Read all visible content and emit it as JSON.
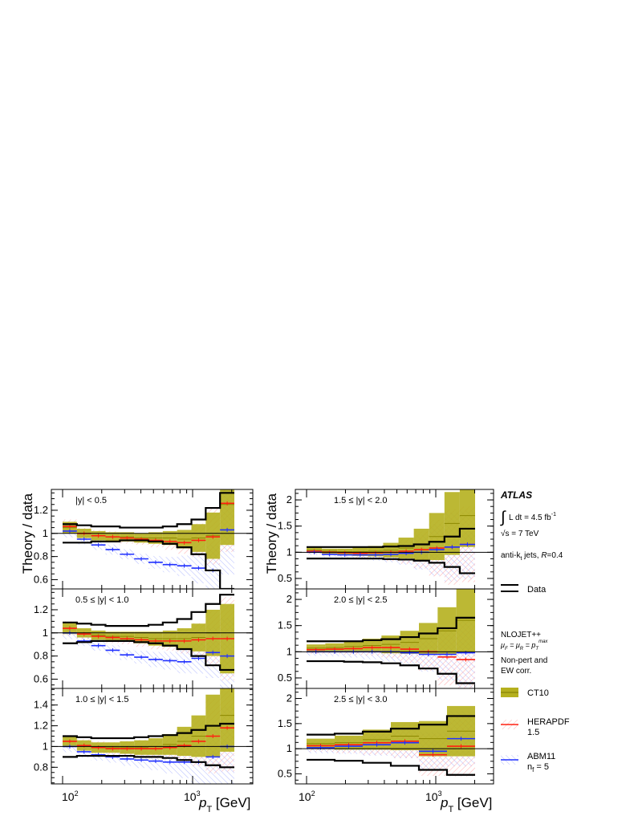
{
  "figure": {
    "ylabel": "Theory / data",
    "xlabel_var": "p",
    "xlabel_sub": "T",
    "xlabel_unit": " [GeV]",
    "xticks": [
      {
        "base": "10",
        "exp": "2"
      },
      {
        "base": "10",
        "exp": "3"
      }
    ]
  },
  "legend": {
    "experiment": "ATLAS",
    "lumi_int": "∫",
    "lumi_text": "L dt = 4.5 fb",
    "lumi_exp": "-1",
    "energy_root": "√",
    "energy_s": "s",
    "energy_text": " = 7 TeV",
    "jet_text": "anti-k",
    "jet_sub": "t",
    "jet_rest": " jets,  ",
    "jet_R": "R",
    "jet_R_val": "=0.4",
    "data_label": "Data",
    "theory_line1": "NLOJET++",
    "scale_text": "μ",
    "scale_sub1": "F",
    "scale_mid": " = μ",
    "scale_sub2": "R",
    "scale_end": " = p",
    "scale_sub3": "T",
    "scale_sup3": "max",
    "theory_line3": "Non-pert and",
    "theory_line4": " EW corr.",
    "entries": [
      {
        "name": "CT10",
        "name2": "",
        "color": "#b5b01e"
      },
      {
        "name": "HERAPDF",
        "name2": "1.5",
        "color": "#ff2010"
      },
      {
        "name": "ABM11",
        "name2": "n",
        "name2_sub": "f",
        "name2_rest": " = 5",
        "color": "#2030ff"
      }
    ]
  },
  "chart_data": [
    {
      "type": "line",
      "panel": "|y| < 0.5",
      "label": "|y| < 0.5",
      "column": "left",
      "row": 0,
      "ylim": [
        0.52,
        1.38
      ],
      "yticks": [
        "0.6",
        "0.8",
        "1",
        "1.2"
      ],
      "ytick_vals": [
        0.6,
        0.8,
        1.0,
        1.2
      ],
      "data_band_upper": [
        1.08,
        1.07,
        1.06,
        1.06,
        1.05,
        1.05,
        1.05,
        1.06,
        1.08,
        1.12,
        1.22,
        1.35
      ],
      "data_band_lower": [
        0.92,
        0.92,
        0.93,
        0.93,
        0.94,
        0.94,
        0.93,
        0.91,
        0.88,
        0.82,
        0.68,
        0.52
      ],
      "ct10": [
        1.05,
        1.0,
        0.98,
        0.97,
        0.97,
        0.96,
        0.96,
        0.96,
        0.95,
        0.96,
        0.98,
        1.25
      ],
      "ct10_unc": [
        0.05,
        0.04,
        0.04,
        0.04,
        0.04,
        0.04,
        0.05,
        0.06,
        0.08,
        0.12,
        0.2,
        0.35
      ],
      "herapdf": [
        1.06,
        1.0,
        0.98,
        0.97,
        0.96,
        0.95,
        0.94,
        0.93,
        0.92,
        0.94,
        0.97,
        1.26
      ],
      "abm11": [
        1.02,
        0.95,
        0.9,
        0.86,
        0.82,
        0.78,
        0.75,
        0.73,
        0.72,
        0.7,
        0.68,
        1.03
      ]
    },
    {
      "type": "line",
      "panel": "0.5 ≤ |y| < 1.0",
      "label": "0.5 ≤ |y| < 1.0",
      "column": "left",
      "row": 1,
      "ylim": [
        0.52,
        1.38
      ],
      "yticks": [
        "0.6",
        "0.8",
        "1",
        "1.2"
      ],
      "ytick_vals": [
        0.6,
        0.8,
        1.0,
        1.2
      ],
      "data_band_upper": [
        1.09,
        1.08,
        1.07,
        1.06,
        1.06,
        1.06,
        1.07,
        1.09,
        1.12,
        1.18,
        1.25,
        1.33
      ],
      "data_band_lower": [
        0.91,
        0.92,
        0.93,
        0.93,
        0.93,
        0.92,
        0.91,
        0.89,
        0.86,
        0.8,
        0.72,
        0.68
      ],
      "ct10": [
        1.04,
        1.0,
        0.98,
        0.97,
        0.97,
        0.96,
        0.95,
        0.95,
        0.95,
        0.96,
        1.0,
        0.95
      ],
      "ct10_unc": [
        0.05,
        0.04,
        0.04,
        0.04,
        0.04,
        0.05,
        0.06,
        0.07,
        0.09,
        0.12,
        0.2,
        0.3
      ],
      "herapdf": [
        1.04,
        0.99,
        0.97,
        0.96,
        0.95,
        0.94,
        0.93,
        0.93,
        0.93,
        0.94,
        0.95,
        0.95
      ],
      "abm11": [
        1.0,
        0.93,
        0.89,
        0.85,
        0.81,
        0.79,
        0.77,
        0.76,
        0.75,
        0.78,
        0.83,
        0.8
      ]
    },
    {
      "type": "line",
      "panel": "1.0 ≤ |y| < 1.5",
      "label": "1.0 ≤ |y| < 1.5",
      "column": "left",
      "row": 2,
      "ylim": [
        0.64,
        1.56
      ],
      "yticks": [
        "0.8",
        "1",
        "1.2",
        "1.4"
      ],
      "ytick_vals": [
        0.8,
        1.0,
        1.2,
        1.4
      ],
      "data_band_upper": [
        1.1,
        1.09,
        1.08,
        1.08,
        1.08,
        1.09,
        1.1,
        1.11,
        1.13,
        1.16,
        1.2,
        1.22
      ],
      "data_band_lower": [
        0.9,
        0.91,
        0.91,
        0.91,
        0.91,
        0.9,
        0.9,
        0.89,
        0.87,
        0.85,
        0.82,
        0.8
      ],
      "ct10": [
        1.05,
        1.01,
        0.99,
        0.99,
        0.99,
        0.99,
        1.0,
        1.02,
        1.05,
        1.1,
        1.2,
        1.3
      ],
      "ct10_unc": [
        0.05,
        0.05,
        0.05,
        0.05,
        0.06,
        0.07,
        0.08,
        0.1,
        0.14,
        0.2,
        0.3,
        0.35
      ],
      "herapdf": [
        1.05,
        1.01,
        0.99,
        0.98,
        0.98,
        0.98,
        0.98,
        0.99,
        1.01,
        1.05,
        1.1,
        1.18
      ],
      "abm11": [
        1.0,
        0.95,
        0.92,
        0.9,
        0.88,
        0.87,
        0.86,
        0.85,
        0.85,
        0.85,
        0.9,
        1.0
      ]
    },
    {
      "type": "line",
      "panel": "1.5 ≤ |y| < 2.0",
      "label": "1.5 ≤ |y| < 2.0",
      "column": "right",
      "row": 0,
      "ylim": [
        0.3,
        2.2
      ],
      "yticks": [
        "0.5",
        "1",
        "1.5",
        "2"
      ],
      "ytick_vals": [
        0.5,
        1.0,
        1.5,
        2.0
      ],
      "data_band_upper": [
        1.1,
        1.1,
        1.1,
        1.1,
        1.1,
        1.11,
        1.12,
        1.15,
        1.2,
        1.3,
        1.45
      ],
      "data_band_lower": [
        0.88,
        0.88,
        0.88,
        0.88,
        0.88,
        0.87,
        0.86,
        0.84,
        0.8,
        0.72,
        0.6
      ],
      "ct10": [
        1.04,
        1.02,
        1.01,
        1.01,
        1.02,
        1.04,
        1.08,
        1.15,
        1.3,
        1.55,
        1.7
      ],
      "ct10_unc": [
        0.05,
        0.05,
        0.06,
        0.08,
        0.1,
        0.14,
        0.2,
        0.3,
        0.45,
        0.6,
        0.6
      ],
      "herapdf": [
        1.02,
        1.0,
        0.99,
        0.98,
        0.99,
        1.0,
        1.02,
        1.05,
        1.08,
        1.1,
        1.15
      ],
      "abm11": [
        1.0,
        0.96,
        0.95,
        0.95,
        0.95,
        0.96,
        0.98,
        1.0,
        1.05,
        1.1,
        1.15
      ]
    },
    {
      "type": "line",
      "panel": "2.0 ≤ |y| < 2.5",
      "label": "2.0 ≤ |y| < 2.5",
      "column": "right",
      "row": 1,
      "ylim": [
        0.3,
        2.2
      ],
      "yticks": [
        "0.5",
        "1",
        "1.5",
        "2"
      ],
      "ytick_vals": [
        0.5,
        1.0,
        1.5,
        2.0
      ],
      "data_band_upper": [
        1.2,
        1.2,
        1.2,
        1.22,
        1.24,
        1.28,
        1.35,
        1.45,
        1.65
      ],
      "data_band_lower": [
        0.82,
        0.82,
        0.81,
        0.8,
        0.78,
        0.74,
        0.68,
        0.58,
        0.4
      ],
      "ct10": [
        1.07,
        1.08,
        1.1,
        1.12,
        1.14,
        1.18,
        1.25,
        1.4,
        1.6
      ],
      "ct10_unc": [
        0.07,
        0.08,
        0.1,
        0.13,
        0.17,
        0.22,
        0.3,
        0.45,
        0.6
      ],
      "herapdf": [
        1.04,
        1.05,
        1.06,
        1.08,
        1.08,
        1.05,
        1.0,
        0.9,
        0.85
      ],
      "abm11": [
        1.0,
        1.0,
        1.0,
        1.0,
        1.0,
        0.98,
        0.95,
        0.95,
        0.98
      ]
    },
    {
      "type": "line",
      "panel": "2.5 ≤ |y| < 3.0",
      "label": "2.5 ≤ |y| < 3.0",
      "column": "right",
      "row": 2,
      "ylim": [
        0.3,
        2.2
      ],
      "yticks": [
        "0.5",
        "1",
        "1.5",
        "2"
      ],
      "ytick_vals": [
        0.5,
        1.0,
        1.5,
        2.0
      ],
      "data_band_upper": [
        1.28,
        1.3,
        1.34,
        1.4,
        1.48,
        1.65
      ],
      "data_band_lower": [
        0.78,
        0.76,
        0.72,
        0.66,
        0.58,
        0.48
      ],
      "ct10": [
        1.1,
        1.12,
        1.18,
        1.25,
        1.2,
        1.35
      ],
      "ct10_unc": [
        0.1,
        0.14,
        0.2,
        0.28,
        0.35,
        0.5
      ],
      "herapdf": [
        1.06,
        1.08,
        1.12,
        1.15,
        0.88,
        1.05
      ],
      "abm11": [
        1.02,
        1.05,
        1.08,
        1.12,
        0.95,
        1.2
      ]
    }
  ]
}
